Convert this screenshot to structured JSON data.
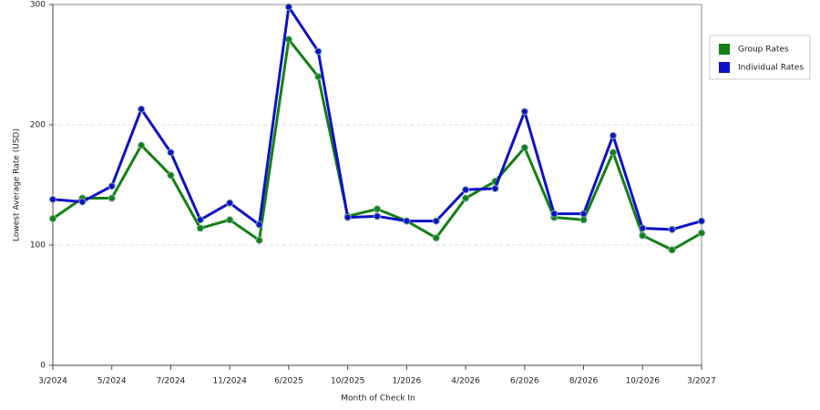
{
  "chart_data": {
    "type": "line",
    "x_label": "Month of Check In",
    "y_label": "Lowest Average Rate (USD)",
    "categories": [
      "3/2024",
      null,
      "5/2024",
      null,
      "7/2024",
      null,
      "11/2024",
      null,
      "6/2025",
      null,
      "10/2025",
      null,
      "1/2026",
      null,
      "4/2026",
      null,
      "6/2026",
      null,
      "8/2026",
      null,
      "10/2026",
      null,
      "3/2027"
    ],
    "series": [
      {
        "name": "Group Rates",
        "color": "#138013",
        "values": [
          122,
          139,
          139,
          183,
          158,
          114,
          121,
          104,
          271,
          240,
          124,
          130,
          120,
          106,
          139,
          153,
          181,
          123,
          121,
          177,
          108,
          96,
          110
        ]
      },
      {
        "name": "Individual Rates",
        "color": "#1010c8",
        "values": [
          138,
          136,
          149,
          213,
          177,
          121,
          135,
          117,
          298,
          261,
          123,
          124,
          120,
          120,
          146,
          147,
          211,
          126,
          126,
          191,
          114,
          113,
          120
        ]
      }
    ],
    "ylim": [
      0,
      300
    ],
    "yticks": [
      0,
      100,
      200,
      300
    ],
    "grid": true,
    "legend": "right"
  }
}
